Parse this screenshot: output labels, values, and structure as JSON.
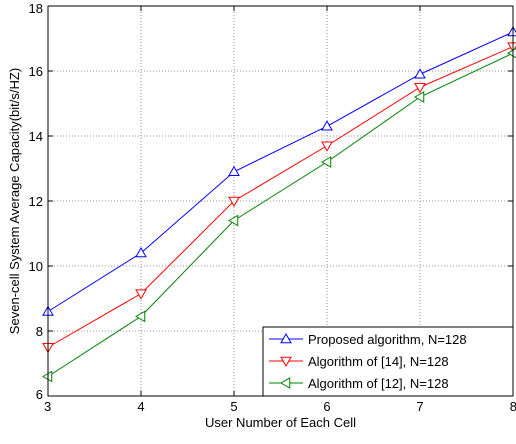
{
  "chart_data": {
    "type": "line",
    "xlabel": "User Number of Each Cell",
    "ylabel": "Seven-cell System Average Capacity(bit/s/HZ)",
    "xlim": [
      3,
      8
    ],
    "ylim": [
      6,
      18
    ],
    "xticks": [
      "3",
      "4",
      "5",
      "6",
      "7",
      "8"
    ],
    "yticks": [
      "6",
      "8",
      "10",
      "12",
      "14",
      "16",
      "18"
    ],
    "grid": true,
    "legend_position": "bottom-right",
    "x": [
      3,
      4,
      5,
      6,
      7,
      8
    ],
    "series": [
      {
        "name": "Proposed algorithm, N=128",
        "color": "#0000ff",
        "marker": "triangle-up",
        "values": [
          8.6,
          10.4,
          12.9,
          14.3,
          15.9,
          17.2
        ]
      },
      {
        "name": "Algorithm of [14], N=128",
        "color": "#ff0000",
        "marker": "triangle-down",
        "values": [
          7.5,
          9.15,
          12.0,
          13.7,
          15.5,
          16.75
        ]
      },
      {
        "name": "Algorithm of [12], N=128",
        "color": "#008000",
        "marker": "triangle-left",
        "values": [
          6.6,
          8.45,
          11.4,
          13.2,
          15.2,
          16.55
        ]
      }
    ]
  }
}
